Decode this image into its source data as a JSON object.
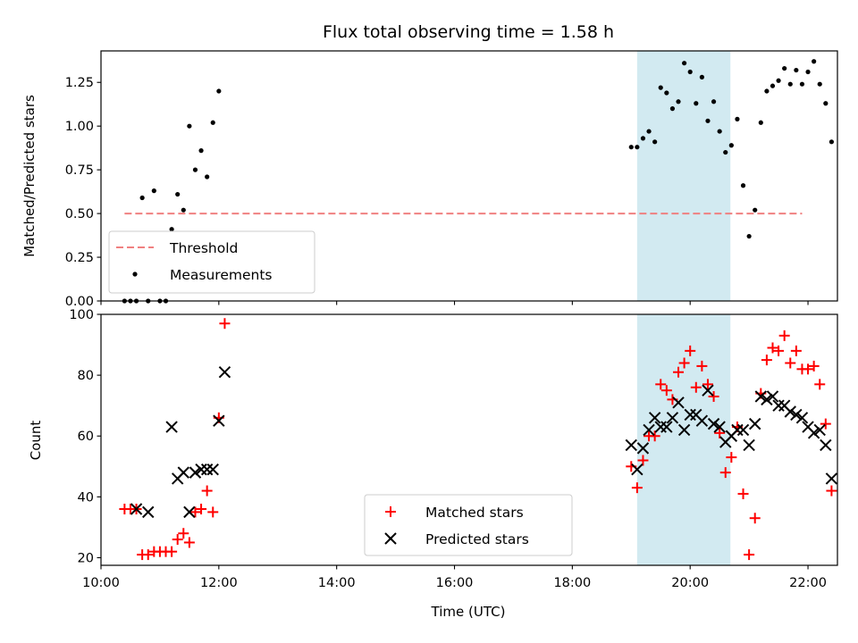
{
  "chart_data": [
    {
      "type": "scatter",
      "title": "Flux total observing time = 1.58 h",
      "xlabel": "",
      "ylabel": "Matched/Predicted stars",
      "xlim": [
        "10:00",
        "22:30"
      ],
      "ylim": [
        0,
        1.43
      ],
      "yticks": [
        "0.00",
        "0.25",
        "0.50",
        "0.75",
        "1.00",
        "1.25"
      ],
      "shaded_region": {
        "x": [
          "19:06",
          "20:41"
        ],
        "color": "#add8e6"
      },
      "legend_position": "lower-left",
      "threshold": {
        "name": "Threshold",
        "value": 0.5,
        "x": [
          "10:24",
          "21:54"
        ],
        "color": "#f08080"
      },
      "series": [
        {
          "name": "Measurements",
          "marker": "dot",
          "color": "#000000",
          "points": [
            [
              "10:24",
              0.0
            ],
            [
              "10:30",
              0.0
            ],
            [
              "10:36",
              0.0
            ],
            [
              "10:42",
              0.59
            ],
            [
              "10:48",
              0.0
            ],
            [
              "10:54",
              0.63
            ],
            [
              "11:00",
              0.0
            ],
            [
              "11:06",
              0.0
            ],
            [
              "11:12",
              0.41
            ],
            [
              "11:18",
              0.61
            ],
            [
              "11:24",
              0.52
            ],
            [
              "11:30",
              1.0
            ],
            [
              "11:36",
              0.75
            ],
            [
              "11:42",
              0.86
            ],
            [
              "11:48",
              0.71
            ],
            [
              "11:54",
              1.02
            ],
            [
              "12:00",
              1.2
            ],
            [
              "19:00",
              0.88
            ],
            [
              "19:06",
              0.88
            ],
            [
              "19:12",
              0.93
            ],
            [
              "19:18",
              0.97
            ],
            [
              "19:24",
              0.91
            ],
            [
              "19:30",
              1.22
            ],
            [
              "19:36",
              1.19
            ],
            [
              "19:42",
              1.1
            ],
            [
              "19:48",
              1.14
            ],
            [
              "19:54",
              1.36
            ],
            [
              "20:00",
              1.31
            ],
            [
              "20:06",
              1.13
            ],
            [
              "20:12",
              1.28
            ],
            [
              "20:18",
              1.03
            ],
            [
              "20:24",
              1.14
            ],
            [
              "20:30",
              0.97
            ],
            [
              "20:36",
              0.85
            ],
            [
              "20:42",
              0.89
            ],
            [
              "20:48",
              1.04
            ],
            [
              "20:54",
              0.66
            ],
            [
              "21:00",
              0.37
            ],
            [
              "21:06",
              0.52
            ],
            [
              "21:12",
              1.02
            ],
            [
              "21:18",
              1.2
            ],
            [
              "21:24",
              1.23
            ],
            [
              "21:30",
              1.26
            ],
            [
              "21:36",
              1.33
            ],
            [
              "21:42",
              1.24
            ],
            [
              "21:48",
              1.32
            ],
            [
              "21:54",
              1.24
            ],
            [
              "22:00",
              1.31
            ],
            [
              "22:06",
              1.37
            ],
            [
              "22:12",
              1.24
            ],
            [
              "22:18",
              1.13
            ],
            [
              "22:24",
              0.91
            ]
          ]
        }
      ]
    },
    {
      "type": "scatter",
      "title": "",
      "xlabel": "Time (UTC)",
      "ylabel": "Count",
      "xlim": [
        "10:00",
        "22:30"
      ],
      "ylim": [
        17.5,
        100
      ],
      "xticks": [
        "10:00",
        "12:00",
        "14:00",
        "16:00",
        "18:00",
        "20:00",
        "22:00"
      ],
      "yticks": [
        "20",
        "40",
        "60",
        "80",
        "100"
      ],
      "shaded_region": {
        "x": [
          "19:06",
          "20:41"
        ],
        "color": "#add8e6"
      },
      "legend_position": "lower-center",
      "series": [
        {
          "name": "Matched stars",
          "marker": "plus",
          "color": "#ff0000",
          "points": [
            [
              "10:24",
              36
            ],
            [
              "10:30",
              36
            ],
            [
              "10:36",
              36
            ],
            [
              "10:42",
              21
            ],
            [
              "10:48",
              21
            ],
            [
              "10:54",
              22
            ],
            [
              "11:00",
              22
            ],
            [
              "11:06",
              22
            ],
            [
              "11:12",
              22
            ],
            [
              "11:18",
              26
            ],
            [
              "11:24",
              28
            ],
            [
              "11:30",
              25
            ],
            [
              "11:36",
              35
            ],
            [
              "11:42",
              36
            ],
            [
              "11:48",
              42
            ],
            [
              "11:54",
              35
            ],
            [
              "12:00",
              66
            ],
            [
              "12:06",
              97
            ],
            [
              "19:00",
              50
            ],
            [
              "19:06",
              43
            ],
            [
              "19:12",
              52
            ],
            [
              "19:18",
              60
            ],
            [
              "19:24",
              60
            ],
            [
              "19:30",
              77
            ],
            [
              "19:36",
              75
            ],
            [
              "19:42",
              72
            ],
            [
              "19:48",
              81
            ],
            [
              "19:54",
              84
            ],
            [
              "20:00",
              88
            ],
            [
              "20:06",
              76
            ],
            [
              "20:12",
              83
            ],
            [
              "20:18",
              77
            ],
            [
              "20:24",
              73
            ],
            [
              "20:30",
              61
            ],
            [
              "20:36",
              48
            ],
            [
              "20:42",
              53
            ],
            [
              "20:48",
              63
            ],
            [
              "20:54",
              41
            ],
            [
              "21:00",
              21
            ],
            [
              "21:06",
              33
            ],
            [
              "21:12",
              74
            ],
            [
              "21:18",
              85
            ],
            [
              "21:24",
              89
            ],
            [
              "21:30",
              88
            ],
            [
              "21:36",
              93
            ],
            [
              "21:42",
              84
            ],
            [
              "21:48",
              88
            ],
            [
              "21:54",
              82
            ],
            [
              "22:00",
              82
            ],
            [
              "22:06",
              83
            ],
            [
              "22:12",
              77
            ],
            [
              "22:18",
              64
            ],
            [
              "22:24",
              42
            ]
          ]
        },
        {
          "name": "Predicted stars",
          "marker": "x",
          "color": "#000000",
          "points": [
            [
              "10:36",
              36
            ],
            [
              "10:48",
              35
            ],
            [
              "11:12",
              63
            ],
            [
              "11:18",
              46
            ],
            [
              "11:24",
              48
            ],
            [
              "11:30",
              35
            ],
            [
              "11:36",
              48
            ],
            [
              "11:42",
              49
            ],
            [
              "11:48",
              49
            ],
            [
              "11:54",
              49
            ],
            [
              "12:00",
              65
            ],
            [
              "12:06",
              81
            ],
            [
              "19:00",
              57
            ],
            [
              "19:06",
              49
            ],
            [
              "19:12",
              56
            ],
            [
              "19:18",
              62
            ],
            [
              "19:24",
              66
            ],
            [
              "19:30",
              63
            ],
            [
              "19:36",
              63
            ],
            [
              "19:42",
              66
            ],
            [
              "19:48",
              71
            ],
            [
              "19:54",
              62
            ],
            [
              "20:00",
              67
            ],
            [
              "20:06",
              67
            ],
            [
              "20:12",
              65
            ],
            [
              "20:18",
              75
            ],
            [
              "20:24",
              64
            ],
            [
              "20:30",
              63
            ],
            [
              "20:36",
              58
            ],
            [
              "20:42",
              60
            ],
            [
              "20:48",
              62
            ],
            [
              "20:54",
              62
            ],
            [
              "21:00",
              57
            ],
            [
              "21:06",
              64
            ],
            [
              "21:12",
              73
            ],
            [
              "21:18",
              72
            ],
            [
              "21:24",
              73
            ],
            [
              "21:30",
              70
            ],
            [
              "21:36",
              70
            ],
            [
              "21:42",
              68
            ],
            [
              "21:48",
              67
            ],
            [
              "21:54",
              66
            ],
            [
              "22:00",
              63
            ],
            [
              "22:06",
              61
            ],
            [
              "22:12",
              62
            ],
            [
              "22:18",
              57
            ],
            [
              "22:24",
              46
            ]
          ]
        }
      ]
    }
  ]
}
